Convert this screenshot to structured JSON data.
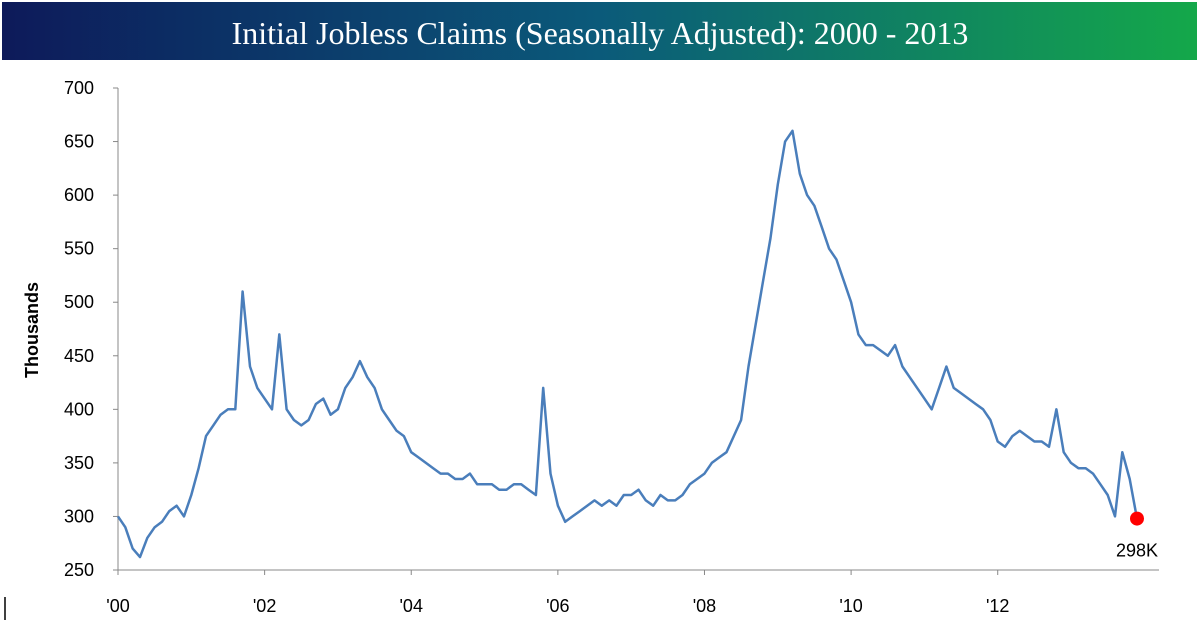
{
  "chart_data": {
    "type": "line",
    "title": "Initial Jobless Claims (Seasonally Adjusted): 2000 - 2013",
    "y_label": "Thousands",
    "x": [
      2000.0,
      2000.1,
      2000.2,
      2000.3,
      2000.4,
      2000.5,
      2000.6,
      2000.7,
      2000.8,
      2000.9,
      2001.0,
      2001.1,
      2001.2,
      2001.3,
      2001.4,
      2001.5,
      2001.6,
      2001.7,
      2001.8,
      2001.9,
      2002.0,
      2002.1,
      2002.2,
      2002.3,
      2002.4,
      2002.5,
      2002.6,
      2002.7,
      2002.8,
      2002.9,
      2003.0,
      2003.1,
      2003.2,
      2003.3,
      2003.4,
      2003.5,
      2003.6,
      2003.7,
      2003.8,
      2003.9,
      2004.0,
      2004.1,
      2004.2,
      2004.3,
      2004.4,
      2004.5,
      2004.6,
      2004.7,
      2004.8,
      2004.9,
      2005.0,
      2005.1,
      2005.2,
      2005.3,
      2005.4,
      2005.5,
      2005.6,
      2005.7,
      2005.8,
      2005.9,
      2006.0,
      2006.1,
      2006.2,
      2006.3,
      2006.4,
      2006.5,
      2006.6,
      2006.7,
      2006.8,
      2006.9,
      2007.0,
      2007.1,
      2007.2,
      2007.3,
      2007.4,
      2007.5,
      2007.6,
      2007.7,
      2007.8,
      2007.9,
      2008.0,
      2008.1,
      2008.2,
      2008.3,
      2008.4,
      2008.5,
      2008.6,
      2008.7,
      2008.8,
      2008.9,
      2009.0,
      2009.1,
      2009.2,
      2009.3,
      2009.4,
      2009.5,
      2009.6,
      2009.7,
      2009.8,
      2009.9,
      2010.0,
      2010.1,
      2010.2,
      2010.3,
      2010.4,
      2010.5,
      2010.6,
      2010.7,
      2010.8,
      2010.9,
      2011.0,
      2011.1,
      2011.2,
      2011.3,
      2011.4,
      2011.5,
      2011.6,
      2011.7,
      2011.8,
      2011.9,
      2012.0,
      2012.1,
      2012.2,
      2012.3,
      2012.4,
      2012.5,
      2012.6,
      2012.7,
      2012.8,
      2012.9,
      2013.0,
      2013.1,
      2013.2,
      2013.3,
      2013.4,
      2013.5,
      2013.6,
      2013.7,
      2013.8,
      2013.9
    ],
    "values": [
      300,
      290,
      270,
      262,
      280,
      290,
      295,
      305,
      310,
      300,
      320,
      345,
      375,
      385,
      395,
      400,
      400,
      510,
      440,
      420,
      410,
      400,
      470,
      400,
      390,
      385,
      390,
      405,
      410,
      395,
      400,
      420,
      430,
      445,
      430,
      420,
      400,
      390,
      380,
      375,
      360,
      355,
      350,
      345,
      340,
      340,
      335,
      335,
      340,
      330,
      330,
      330,
      325,
      325,
      330,
      330,
      325,
      320,
      420,
      340,
      310,
      295,
      300,
      305,
      310,
      315,
      310,
      315,
      310,
      320,
      320,
      325,
      315,
      310,
      320,
      315,
      315,
      320,
      330,
      335,
      340,
      350,
      355,
      360,
      375,
      390,
      440,
      480,
      520,
      560,
      610,
      650,
      660,
      620,
      600,
      590,
      570,
      550,
      540,
      520,
      500,
      470,
      460,
      460,
      455,
      450,
      460,
      440,
      430,
      420,
      410,
      400,
      420,
      440,
      420,
      415,
      410,
      405,
      400,
      390,
      370,
      365,
      375,
      380,
      375,
      370,
      370,
      365,
      400,
      360,
      350,
      345,
      345,
      340,
      330,
      320,
      300,
      360,
      335,
      298
    ],
    "color": "#4a7ebb",
    "last_point_label": "298K",
    "last_point_color": "#ff0000",
    "xlim": [
      2000,
      2014.2
    ],
    "xticks": [
      {
        "value": 2000,
        "label": "'00"
      },
      {
        "value": 2002,
        "label": "'02"
      },
      {
        "value": 2004,
        "label": "'04"
      },
      {
        "value": 2006,
        "label": "'06"
      },
      {
        "value": 2008,
        "label": "'08"
      },
      {
        "value": 2010,
        "label": "'10"
      },
      {
        "value": 2012,
        "label": "'12"
      }
    ],
    "ylim": [
      250,
      700
    ],
    "yticks": [
      250,
      300,
      350,
      400,
      450,
      500,
      550,
      600,
      650,
      700
    ]
  }
}
